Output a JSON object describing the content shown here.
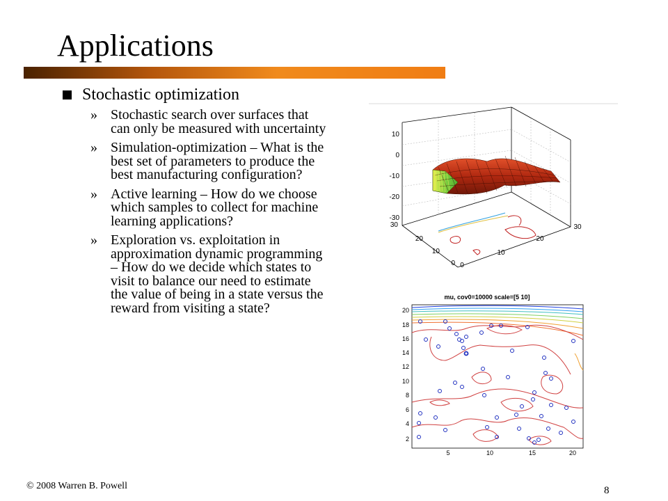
{
  "slide": {
    "title": "Applications",
    "main_bullet": "Stochastic optimization",
    "sub_marker": "»",
    "sub_bullets": [
      "Stochastic search over surfaces that can only be measured with uncertainty",
      "Simulation-optimization – What is the best set of parameters to produce the best manufacturing configuration?",
      "Active learning – How do we choose which samples to collect for machine learning applications?",
      "Exploration vs. exploitation in approximation dynamic programming – How do we decide which states to visit to balance our need to estimate the value of being in a state versus the reward from visiting a state?"
    ],
    "footer": "© 2008 Warren B. Powell",
    "page_number": "8"
  },
  "figure_3d": {
    "z_ticks": [
      "10",
      "0",
      "-10",
      "-20",
      "-30"
    ],
    "y_ticks": [
      "30",
      "20",
      "10",
      "0"
    ],
    "x_ticks": [
      "0",
      "10",
      "20",
      "30"
    ]
  },
  "figure_contour": {
    "title": "mu, cov0=10000 scale=[5 10]",
    "y_ticks": [
      "20",
      "18",
      "16",
      "14",
      "12",
      "10",
      "8",
      "6",
      "4",
      "2"
    ],
    "x_ticks": [
      "5",
      "10",
      "15",
      "20"
    ]
  },
  "colors": {
    "bar_dark": "#4a2200",
    "bar_light": "#f08a1c",
    "surface": "#c0301a",
    "contour_red": "#d04040",
    "marker_blue": "#2030c0"
  }
}
